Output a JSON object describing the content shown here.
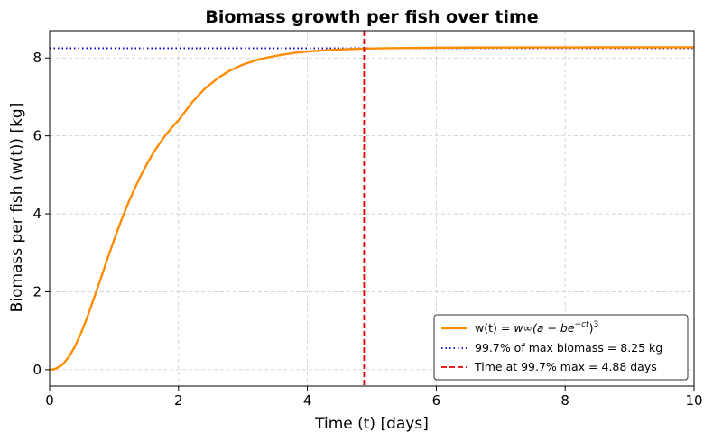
{
  "chart_data": {
    "type": "line",
    "title": "Biomass growth per fish over time",
    "xlabel": "Time (t) [days]",
    "ylabel": "Biomass per fish (w(t)) [kg]",
    "xlim": [
      0,
      10
    ],
    "ylim": [
      -0.42,
      8.7
    ],
    "x_ticks": [
      "0",
      "2",
      "4",
      "6",
      "8",
      "10"
    ],
    "y_ticks": [
      "0",
      "2",
      "4",
      "6",
      "8"
    ],
    "grid": true,
    "legend_position": "lower-right",
    "series": [
      {
        "name": "w(t) = w∞(a − be^(−ct))³",
        "legend_prefix": "w(t) = ",
        "legend_math": "w∞(a − be",
        "legend_sup": "−ct",
        "legend_tail": ")",
        "legend_tail_sup": "3",
        "color": "#ff8c00",
        "style": "solid",
        "x": [
          0,
          0.05,
          0.1,
          0.2,
          0.3,
          0.4,
          0.5,
          0.6,
          0.7,
          0.8,
          0.9,
          1.0,
          1.1,
          1.2,
          1.3,
          1.4,
          1.5,
          1.6,
          1.7,
          1.8,
          1.9,
          2.0,
          2.2,
          2.4,
          2.6,
          2.8,
          3.0,
          3.2,
          3.4,
          3.6,
          3.8,
          4.0,
          4.2,
          4.4,
          4.6,
          4.8,
          5.0,
          5.5,
          6.0,
          6.5,
          7.0,
          7.5,
          8.0,
          8.5,
          9.0,
          9.5,
          10.0
        ],
        "y": [
          0,
          0.004,
          0.03,
          0.13,
          0.33,
          0.62,
          0.99,
          1.42,
          1.89,
          2.37,
          2.86,
          3.33,
          3.78,
          4.2,
          4.58,
          4.93,
          5.25,
          5.54,
          5.79,
          6.02,
          6.22,
          6.4,
          6.84,
          7.2,
          7.47,
          7.68,
          7.83,
          7.94,
          8.02,
          8.08,
          8.13,
          8.165,
          8.19,
          8.21,
          8.225,
          8.235,
          8.245,
          8.255,
          8.262,
          8.266,
          8.268,
          8.27,
          8.271,
          8.272,
          8.272,
          8.273,
          8.273
        ]
      },
      {
        "name": "99.7% of max biomass = 8.25 kg",
        "color": "#0000cc",
        "style": "dotted",
        "y_value": 8.25
      },
      {
        "name": "Time at 99.7% max = 4.88 days",
        "color": "#e00000",
        "style": "dashed",
        "x_value": 4.88
      }
    ]
  }
}
